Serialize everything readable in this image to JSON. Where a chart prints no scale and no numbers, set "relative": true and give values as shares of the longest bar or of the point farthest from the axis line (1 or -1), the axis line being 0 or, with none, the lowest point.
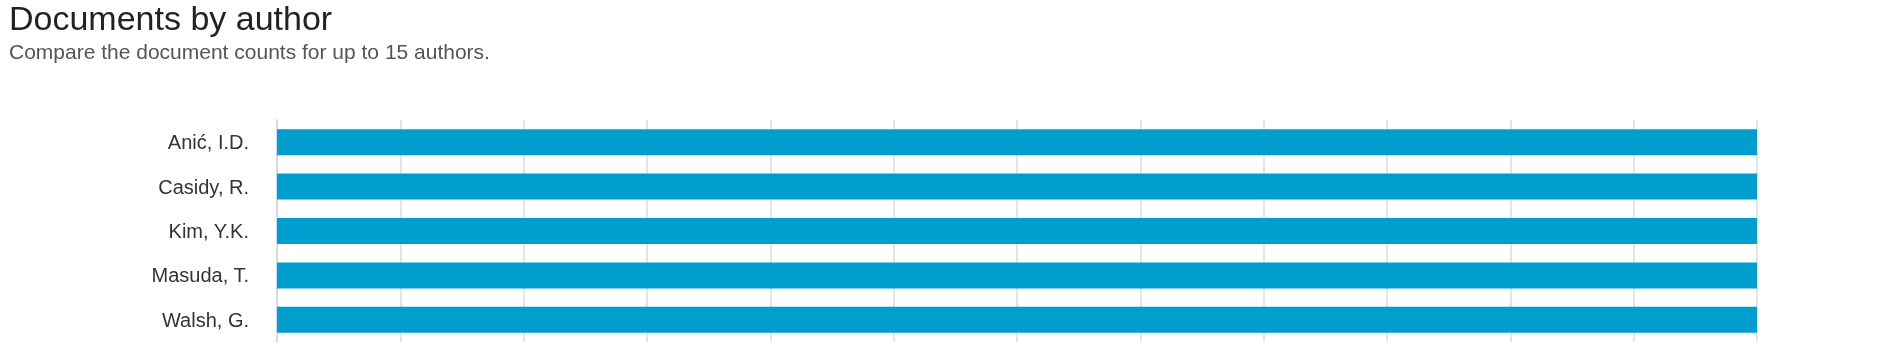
{
  "chart_data": {
    "type": "bar",
    "orientation": "horizontal",
    "relative": true,
    "title": "Documents by author",
    "subtitle": "Compare the document counts for up to 15 authors.",
    "categories": [
      "Anić, I.D.",
      "Casidy, R.",
      "Kim, Y.K.",
      "Masuda, T.",
      "Walsh, G."
    ],
    "values": [
      1,
      1,
      1,
      1,
      1
    ],
    "color": "#009ecf",
    "grid": "x"
  }
}
